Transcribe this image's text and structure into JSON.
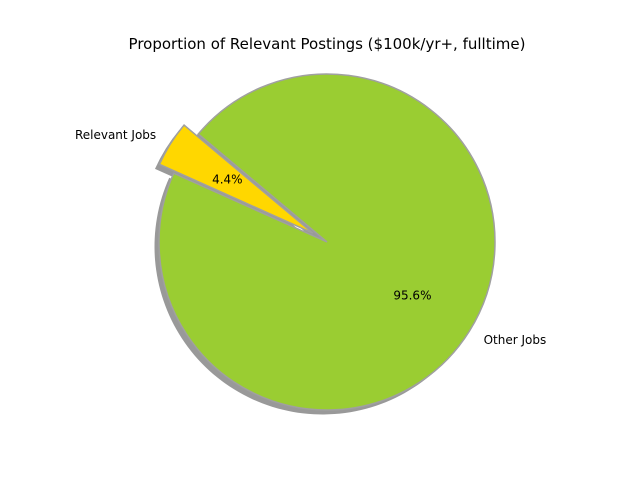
{
  "chart_data": {
    "type": "pie",
    "title": "Proportion of Relevant Postings ($100k/yr+, fulltime)",
    "slices": [
      {
        "label": "Relevant Jobs",
        "value": 4.4,
        "pct_label": "4.4%",
        "color": "#ffd700",
        "exploded": true
      },
      {
        "label": "Other Jobs",
        "value": 95.6,
        "pct_label": "95.6%",
        "color": "#9acd32",
        "exploded": false
      }
    ],
    "shadow": true,
    "start_angle_deg": 140,
    "edge_color": "#a0a0a0"
  }
}
